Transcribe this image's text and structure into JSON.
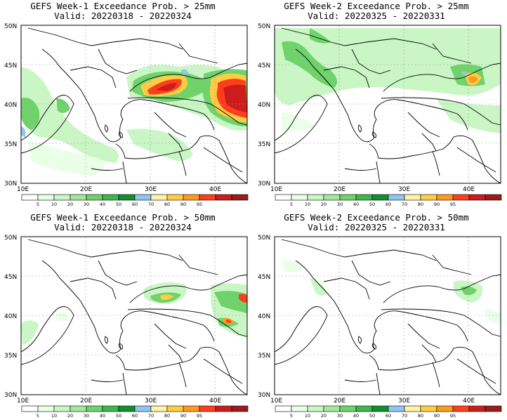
{
  "colors": {
    "scale": [
      "#ffffff",
      "#eaffe8",
      "#c9f6c4",
      "#a3e89c",
      "#6fd26a",
      "#3db84a",
      "#10902f",
      "#8fc6ee",
      "#fff3a6",
      "#ffcc44",
      "#ff9a1f",
      "#ff3e1e",
      "#cc1c1c",
      "#9b1a1a"
    ],
    "coast": "#000000",
    "grid": "#9a9a9a"
  },
  "map_axes": {
    "lat_labels": [
      "50N",
      "45N",
      "40N",
      "35N",
      "30N"
    ],
    "lon_labels": [
      "10E",
      "20E",
      "30E",
      "40E"
    ]
  },
  "colorbar": {
    "tick_labels": [
      "5",
      "10",
      "20",
      "30",
      "40",
      "50",
      "60",
      "70",
      "80",
      "90",
      "95"
    ]
  },
  "panels": [
    {
      "title": "GEFS Week-1 Exceedance Prob. > 25mm",
      "valid": "Valid: 20220318 - 20220324"
    },
    {
      "title": "GEFS Week-2 Exceedance Prob. > 25mm",
      "valid": "Valid: 20220325 - 20220331"
    },
    {
      "title": "GEFS Week-1 Exceedance Prob. > 50mm",
      "valid": "Valid: 20220318 - 20220324"
    },
    {
      "title": "GEFS Week-2 Exceedance Prob. > 50mm",
      "valid": "Valid: 20220325 - 20220331"
    }
  ]
}
